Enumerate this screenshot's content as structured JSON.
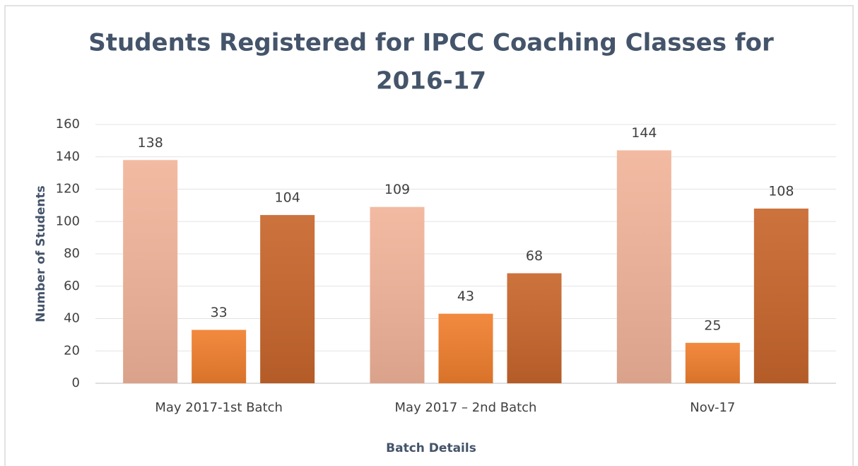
{
  "chart_data": {
    "type": "bar",
    "title_lines": [
      "Students Registered for IPCC Coaching Classes for",
      "2016-17"
    ],
    "x_label": "Batch Details",
    "y_label": "Number of Students",
    "categories": [
      "May 2017-1st Batch",
      "May 2017 – 2nd Batch",
      "Nov-17"
    ],
    "series": [
      {
        "color": "#f2b49a",
        "values": [
          138,
          109,
          144
        ]
      },
      {
        "color": "#f07f2e",
        "values": [
          33,
          43,
          25
        ]
      },
      {
        "color": "#c8662c",
        "values": [
          104,
          68,
          108
        ]
      }
    ],
    "ylim": [
      0,
      160
    ],
    "yticks": [
      0,
      20,
      40,
      60,
      80,
      100,
      120,
      140,
      160
    ],
    "grid": true
  }
}
